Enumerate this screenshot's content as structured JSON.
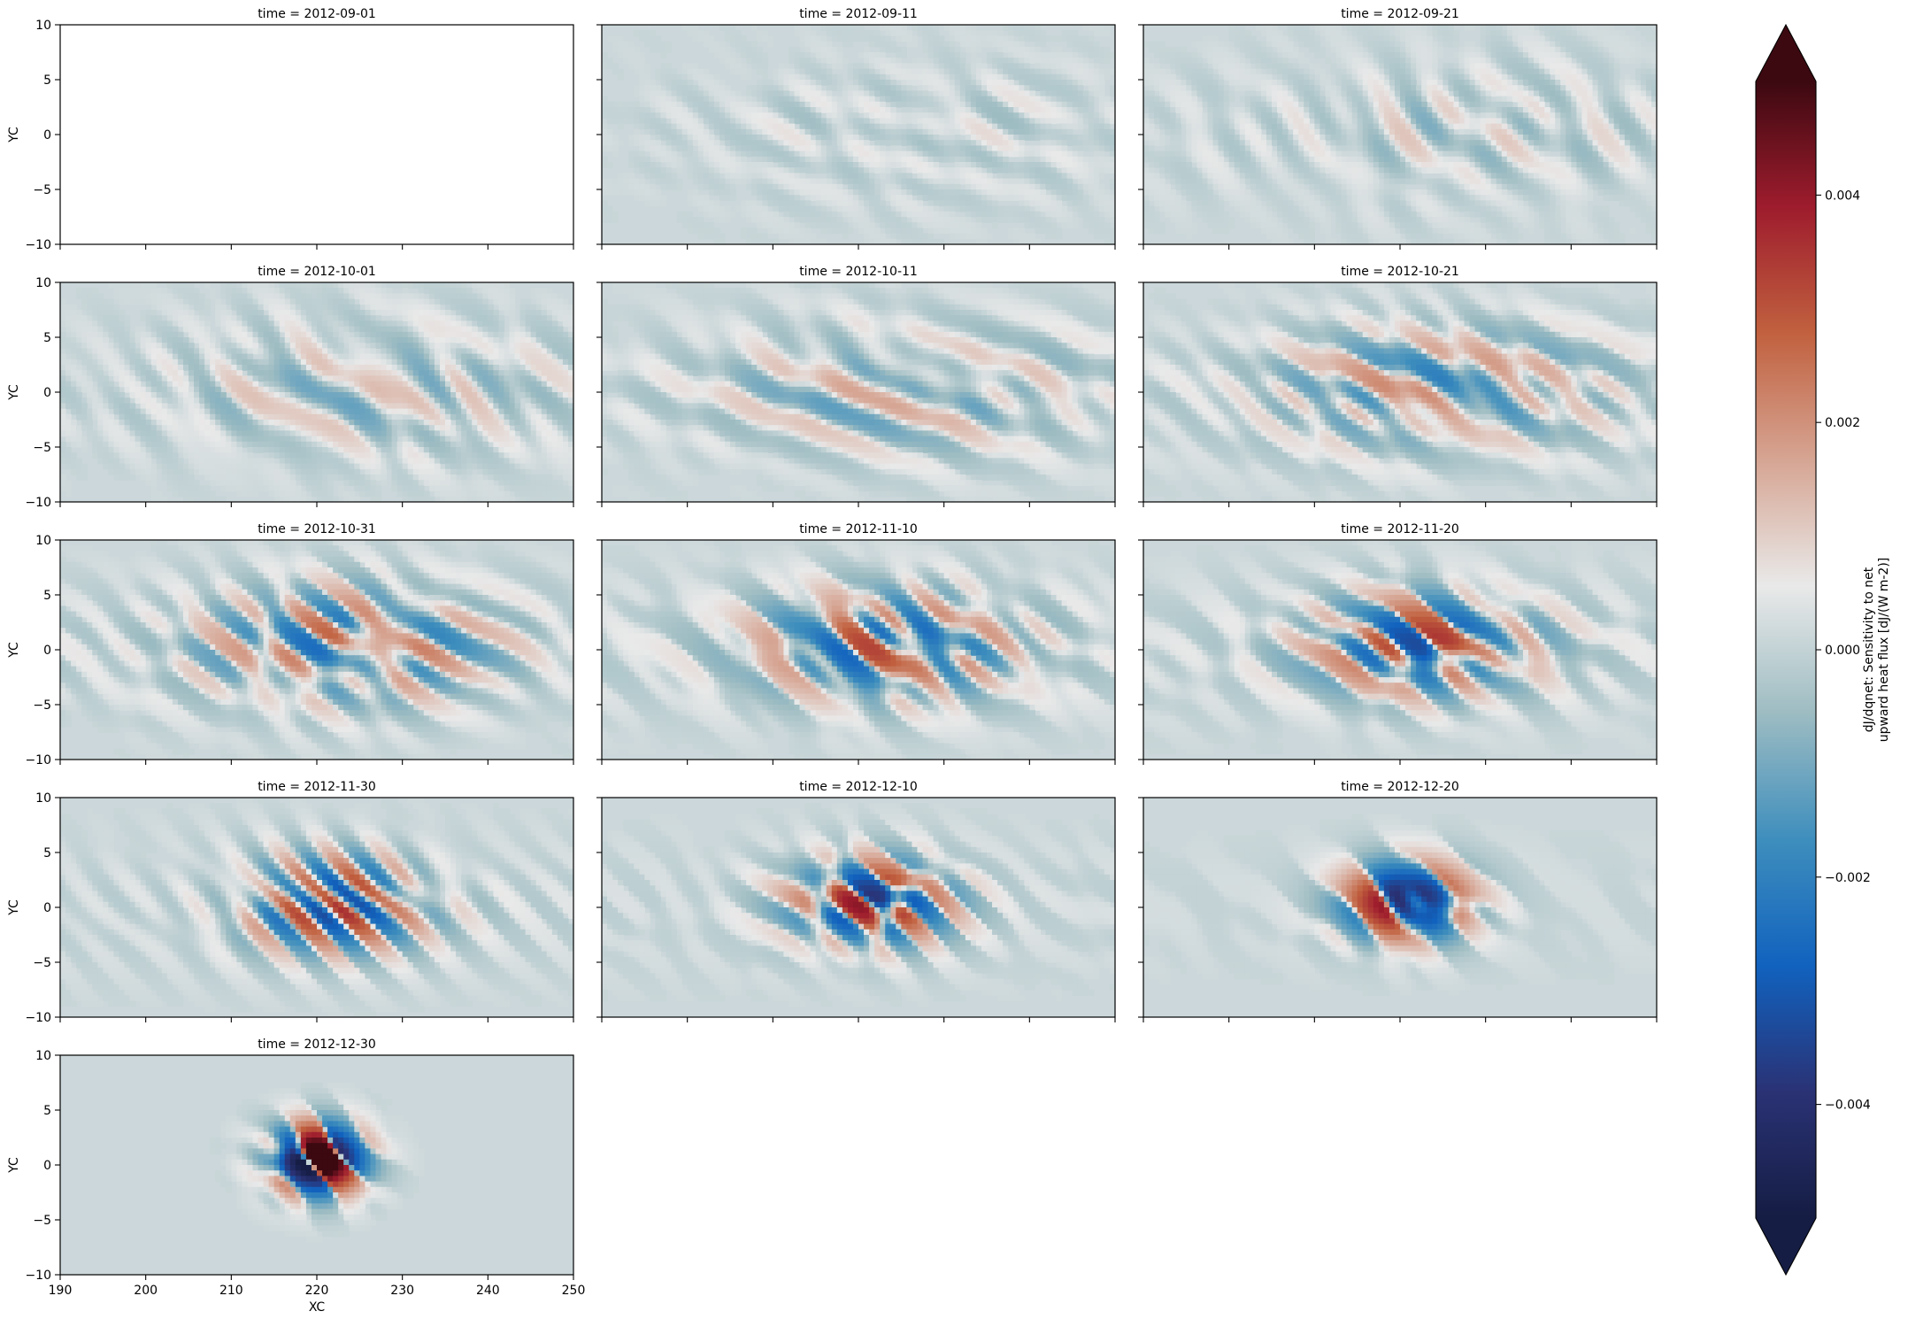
{
  "chart_data": {
    "type": "heatmap",
    "layout": "facet-grid",
    "panels_per_row": 3,
    "xlabel": "XC",
    "ylabel": "YC",
    "xlim": [
      190,
      250
    ],
    "ylim": [
      -10,
      10
    ],
    "x_ticks": [
      190,
      200,
      210,
      220,
      230,
      240,
      250
    ],
    "y_ticks": [
      -10,
      -5,
      0,
      5,
      10
    ],
    "panel_title_prefix": "time = ",
    "panels": [
      {
        "time": "2012-09-01",
        "amplitude": 0.0
      },
      {
        "time": "2012-09-11",
        "amplitude": 0.0006
      },
      {
        "time": "2012-09-21",
        "amplitude": 0.0009
      },
      {
        "time": "2012-10-01",
        "amplitude": 0.0012
      },
      {
        "time": "2012-10-11",
        "amplitude": 0.0015
      },
      {
        "time": "2012-10-21",
        "amplitude": 0.0019
      },
      {
        "time": "2012-10-31",
        "amplitude": 0.0024
      },
      {
        "time": "2012-11-10",
        "amplitude": 0.0028
      },
      {
        "time": "2012-11-20",
        "amplitude": 0.0031
      },
      {
        "time": "2012-11-30",
        "amplitude": 0.0036
      },
      {
        "time": "2012-12-10",
        "amplitude": 0.0039
      },
      {
        "time": "2012-12-20",
        "amplitude": 0.0045
      },
      {
        "time": "2012-12-30",
        "amplitude": 0.006
      }
    ],
    "colorbar": {
      "label_line1": "dJ/dqnet: Sensitivity to net",
      "label_line2": "upward heat flux [dJ/(W m-2)]",
      "vmin": -0.005,
      "vmax": 0.005,
      "ticks": [
        -0.004,
        -0.002,
        0.0,
        0.002,
        0.004
      ],
      "tick_labels": [
        "−0.004",
        "−0.002",
        "0.000",
        "0.002",
        "0.004"
      ],
      "extend": "both",
      "colormap": [
        "#151d44",
        "#2a3275",
        "#1162be",
        "#3e8ebd",
        "#9dbcc2",
        "#e9e9e9",
        "#d6a593",
        "#c1613f",
        "#9e1c2d",
        "#3c0911"
      ]
    }
  }
}
